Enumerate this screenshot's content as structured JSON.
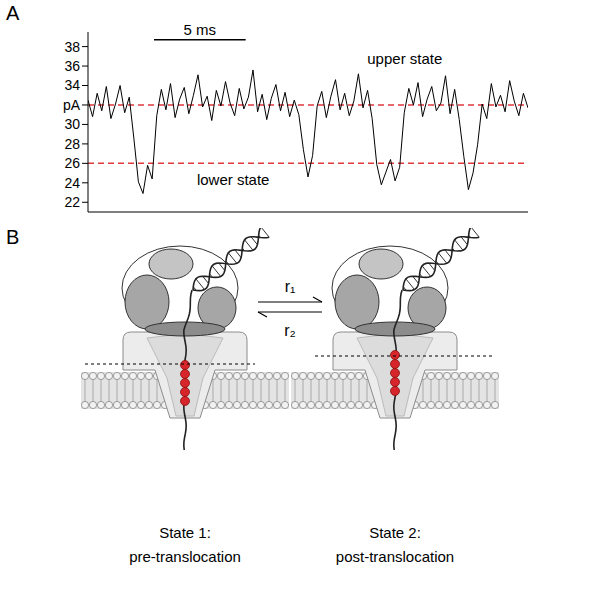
{
  "panel_labels": {
    "chart": "A",
    "diagram": "B"
  },
  "chart_data": {
    "type": "line",
    "x": [
      0,
      0.25,
      0.5,
      0.75,
      1,
      1.25,
      1.5,
      1.75,
      2,
      2.25,
      2.5,
      2.75,
      3,
      3.25,
      3.5,
      3.75,
      4,
      4.25,
      4.5,
      4.75,
      5,
      5.25,
      5.5,
      5.75,
      6,
      6.25,
      6.5,
      6.75,
      7,
      7.25,
      7.5,
      7.75,
      8,
      8.25,
      8.5,
      8.75,
      9,
      9.25,
      9.5,
      9.75,
      10,
      10.25,
      10.5,
      10.75,
      11,
      11.25,
      11.5,
      11.75,
      12,
      12.25,
      12.5,
      12.75,
      13,
      13.25,
      13.5,
      13.75,
      14,
      14.25,
      14.5,
      14.75,
      15,
      15.25,
      15.5,
      15.75,
      16,
      16.25,
      16.5,
      16.75,
      17,
      17.25,
      17.5,
      17.75,
      18,
      18.25,
      18.5,
      18.75,
      19,
      19.25,
      19.5,
      19.75,
      20,
      20.25,
      20.5,
      20.75,
      21,
      21.25,
      21.5,
      21.75,
      22,
      22.25,
      22.5,
      22.75,
      23,
      23.25,
      23.5,
      23.75,
      24
    ],
    "values": [
      32.5,
      30.8,
      33.2,
      31.4,
      33.9,
      30.6,
      32.1,
      34.0,
      31.2,
      32.8,
      28.6,
      24.1,
      22.9,
      25.8,
      24.4,
      30.9,
      33.6,
      31.5,
      34.2,
      30.7,
      32.6,
      33.8,
      31.1,
      33.0,
      35.1,
      31.8,
      32.9,
      30.4,
      33.5,
      31.9,
      34.4,
      32.2,
      30.9,
      33.7,
      31.6,
      32.8,
      35.6,
      31.3,
      33.1,
      30.5,
      32.7,
      34.1,
      31.4,
      33.3,
      30.8,
      32.5,
      31.0,
      27.4,
      24.6,
      26.8,
      31.9,
      33.4,
      30.7,
      32.9,
      34.6,
      31.5,
      33.2,
      30.9,
      32.4,
      35.2,
      31.7,
      33.5,
      30.6,
      25.9,
      23.8,
      25.1,
      26.4,
      24.2,
      25.6,
      31.2,
      33.7,
      32.0,
      34.3,
      30.8,
      32.6,
      33.9,
      31.4,
      32.2,
      35.0,
      31.1,
      33.6,
      30.5,
      26.7,
      23.3,
      25.0,
      27.9,
      32.1,
      30.6,
      34.2,
      31.8,
      33.0,
      31.3,
      34.5,
      32.4,
      30.9,
      33.2,
      31.7
    ],
    "color": "#000000",
    "xlim": [
      0,
      24
    ],
    "xticks": [],
    "ylim": [
      21,
      39.5
    ],
    "yticks": [
      22,
      24,
      26,
      28,
      30,
      {
        "value": 32,
        "label": "pA"
      },
      34,
      36,
      38
    ],
    "tick_labels": "y",
    "grid": false,
    "reference_lines": [
      {
        "value": 32,
        "label": "upper state",
        "color": "#e0393e",
        "line_style": "dashed"
      },
      {
        "value": 26,
        "label": "lower state",
        "color": "#e0393e",
        "line_style": "dashed"
      }
    ],
    "scale_bar": {
      "length": 5,
      "label": "5 ms"
    }
  },
  "diagram": {
    "states": [
      {
        "title": "State 1:",
        "subtitle": "pre-translocation"
      },
      {
        "title": "State 2:",
        "subtitle": "post-translocation"
      }
    ],
    "rates": {
      "forward": "r₁",
      "reverse": "r₂"
    }
  }
}
